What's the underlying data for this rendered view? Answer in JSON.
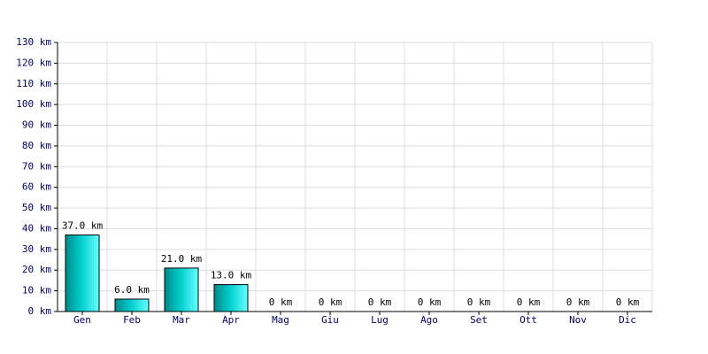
{
  "chart_data": {
    "type": "bar",
    "categories": [
      "Gen",
      "Feb",
      "Mar",
      "Apr",
      "Mag",
      "Giu",
      "Lug",
      "Ago",
      "Set",
      "Ott",
      "Nov",
      "Dic"
    ],
    "values": [
      37,
      6,
      21,
      13,
      0,
      0,
      0,
      0,
      0,
      0,
      0,
      0
    ],
    "value_labels": [
      "37.0 km",
      "6.0 km",
      "21.0 km",
      "13.0 km",
      "0 km",
      "0 km",
      "0 km",
      "0 km",
      "0 km",
      "0 km",
      "0 km",
      "0 km"
    ],
    "color": "#00cccc",
    "ylim": [
      0,
      130
    ],
    "yticks": [
      {
        "value": 0,
        "label": "0 km"
      },
      {
        "value": 10,
        "label": "10 km"
      },
      {
        "value": 20,
        "label": "20 km"
      },
      {
        "value": 30,
        "label": "30 km"
      },
      {
        "value": 40,
        "label": "40 km"
      },
      {
        "value": 50,
        "label": "50 km"
      },
      {
        "value": 60,
        "label": "60 km"
      },
      {
        "value": 70,
        "label": "70 km"
      },
      {
        "value": 80,
        "label": "80 km"
      },
      {
        "value": 90,
        "label": "90 km"
      },
      {
        "value": 100,
        "label": "100 km"
      },
      {
        "value": 110,
        "label": "110 km"
      },
      {
        "value": 120,
        "label": "120 km"
      },
      {
        "value": 130,
        "label": "130 km"
      }
    ],
    "grid": true
  }
}
